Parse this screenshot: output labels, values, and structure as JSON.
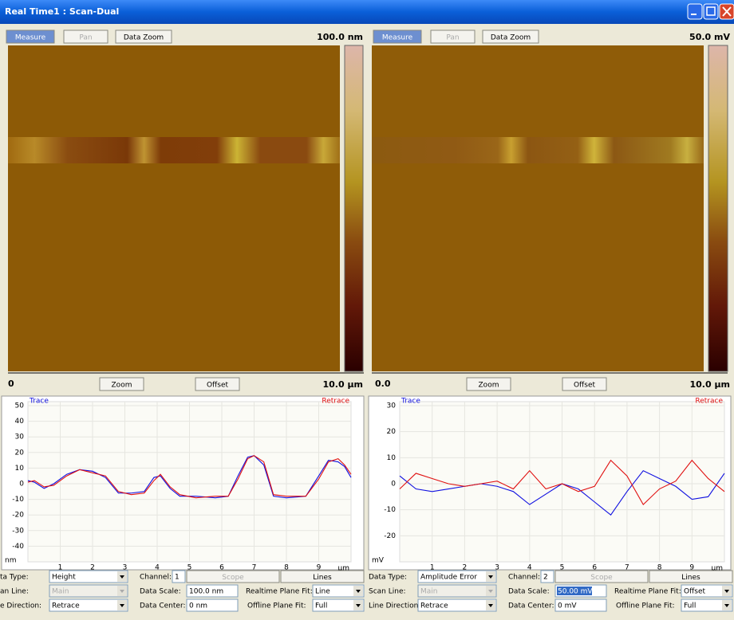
{
  "window": {
    "title": "Real Time1 : Scan-Dual"
  },
  "panels": [
    {
      "toolbar": {
        "measure": "Measure",
        "pan": "Pan",
        "data_zoom": "Data Zoom",
        "scale": "100.0 nm"
      },
      "image_footer": {
        "start": "0",
        "zoom": "Zoom",
        "offset": "Offset",
        "end": "10.0 µm"
      },
      "plot": {
        "y_unit": "nm",
        "x_unit": "µm",
        "xlim": [
          0,
          10
        ],
        "ylim": [
          -50,
          50
        ],
        "yticks": [
          50,
          40,
          30,
          20,
          10,
          0,
          -10,
          -20,
          -30,
          -40
        ],
        "xticks": [
          1,
          2,
          3,
          4,
          5,
          6,
          7,
          8,
          9
        ],
        "x": [
          0,
          0.2,
          0.5,
          0.8,
          1.2,
          1.6,
          2.0,
          2.4,
          2.8,
          3.2,
          3.6,
          3.9,
          4.1,
          4.4,
          4.7,
          5.2,
          5.8,
          6.2,
          6.5,
          6.8,
          7.0,
          7.3,
          7.6,
          8.0,
          8.6,
          9.0,
          9.3,
          9.6,
          9.8,
          10
        ],
        "series": [
          {
            "name": "Trace",
            "color": "#1010e0",
            "values": [
              2,
              1,
              -3,
              0,
              6,
              9,
              8,
              4,
              -6,
              -6,
              -5,
              4,
              5,
              -3,
              -8,
              -8,
              -9,
              -8,
              5,
              17,
              18,
              12,
              -8,
              -9,
              -8,
              5,
              15,
              14,
              11,
              4
            ]
          },
          {
            "name": "Retrace",
            "color": "#e01010",
            "values": [
              1,
              2,
              -2,
              -1,
              5,
              9,
              7,
              5,
              -5,
              -7,
              -6,
              2,
              6,
              -2,
              -7,
              -9,
              -8,
              -8,
              3,
              16,
              18,
              14,
              -7,
              -8,
              -8,
              3,
              14,
              16,
              12,
              6
            ]
          }
        ]
      },
      "controls": {
        "data_type_label": "ta Type:",
        "data_type": "Height",
        "channel_label": "Channel:",
        "channel": "1",
        "scope": "Scope",
        "lines": "Lines",
        "scan_line_label": "an Line:",
        "scan_line": "Main",
        "data_scale_label": "Data Scale:",
        "data_scale": "100.0 nm",
        "realtime_fit_label": "Realtime Plane Fit:",
        "realtime_fit": "Line",
        "line_direction_label": "e Direction:",
        "line_direction": "Retrace",
        "data_center_label": "Data Center:",
        "data_center": "0 nm",
        "offline_fit_label": "Offline Plane Fit:",
        "offline_fit": "Full"
      }
    },
    {
      "toolbar": {
        "measure": "Measure",
        "pan": "Pan",
        "data_zoom": "Data Zoom",
        "scale": "50.0 mV"
      },
      "image_footer": {
        "start": "0.0",
        "zoom": "Zoom",
        "offset": "Offset",
        "end": "10.0 µm"
      },
      "plot": {
        "y_unit": "mV",
        "x_unit": "µm",
        "xlim": [
          0,
          10
        ],
        "ylim": [
          -30,
          30
        ],
        "yticks": [
          30,
          20,
          10,
          0,
          -10,
          -20
        ],
        "xticks": [
          1,
          2,
          3,
          4,
          5,
          6,
          7,
          8,
          9
        ],
        "x": [
          0,
          0.5,
          1,
          1.5,
          2,
          2.5,
          3,
          3.5,
          4,
          4.5,
          5,
          5.5,
          6,
          6.5,
          7,
          7.5,
          8,
          8.5,
          9,
          9.5,
          10
        ],
        "series": [
          {
            "name": "Trace",
            "color": "#1010e0",
            "values": [
              3,
              -2,
              -3,
              -2,
              -1,
              0,
              -1,
              -3,
              -8,
              -4,
              0,
              -2,
              -7,
              -12,
              -3,
              5,
              2,
              -1,
              -6,
              -5,
              4
            ]
          },
          {
            "name": "Retrace",
            "color": "#e01010",
            "values": [
              -2,
              4,
              2,
              0,
              -1,
              0,
              1,
              -2,
              5,
              -2,
              0,
              -3,
              -1,
              9,
              3,
              -8,
              -2,
              1,
              9,
              2,
              -3
            ]
          }
        ]
      },
      "controls": {
        "data_type_label": "Data Type:",
        "data_type": "Amplitude Error",
        "channel_label": "Channel:",
        "channel": "2",
        "scope": "Scope",
        "lines": "Lines",
        "scan_line_label": "Scan Line:",
        "scan_line": "Main",
        "data_scale_label": "Data Scale:",
        "data_scale": "50.00 mV",
        "realtime_fit_label": "Realtime Plane Fit:",
        "realtime_fit": "Offset",
        "line_direction_label": "Line Direction:",
        "line_direction": "Retrace",
        "data_center_label": "Data Center:",
        "data_center": "0 mV",
        "offline_fit_label": "Offline Plane Fit:",
        "offline_fit": "Full"
      }
    }
  ]
}
